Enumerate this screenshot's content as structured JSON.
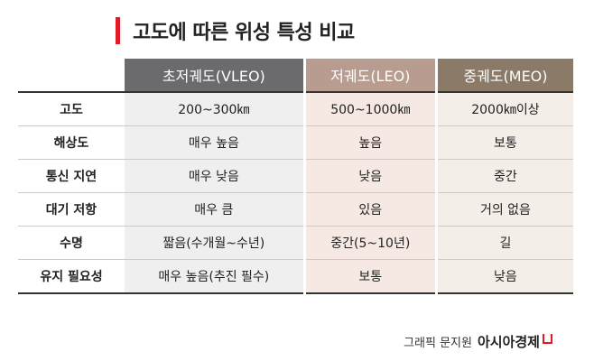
{
  "title": "고도에 따른 위성 특성 비교",
  "columns": [
    "초저궤도(VLEO)",
    "저궤도(LEO)",
    "중궤도(MEO)"
  ],
  "rows": [
    {
      "label": "고도",
      "values": [
        "200~300㎞",
        "500~1000㎞",
        "2000㎞이상"
      ]
    },
    {
      "label": "해상도",
      "values": [
        "매우 높음",
        "높음",
        "보통"
      ]
    },
    {
      "label": "통신 지연",
      "values": [
        "매우 낮음",
        "낮음",
        "중간"
      ]
    },
    {
      "label": "대기 저항",
      "values": [
        "매우 큼",
        "있음",
        "거의 없음"
      ]
    },
    {
      "label": "수명",
      "values": [
        "짧음(수개월~수년)",
        "중간(5~10년)",
        "길"
      ]
    },
    {
      "label": "유지 필요성",
      "values": [
        "매우 높음(추진 필수)",
        "보통",
        "낮음"
      ]
    }
  ],
  "credit": {
    "text": "그래픽 문지원",
    "brand": "아시아경제"
  },
  "colors": {
    "accent": "#e11b22",
    "col1": "#6b6b6d",
    "col2": "#b89c90",
    "col3": "#8a7a67"
  }
}
